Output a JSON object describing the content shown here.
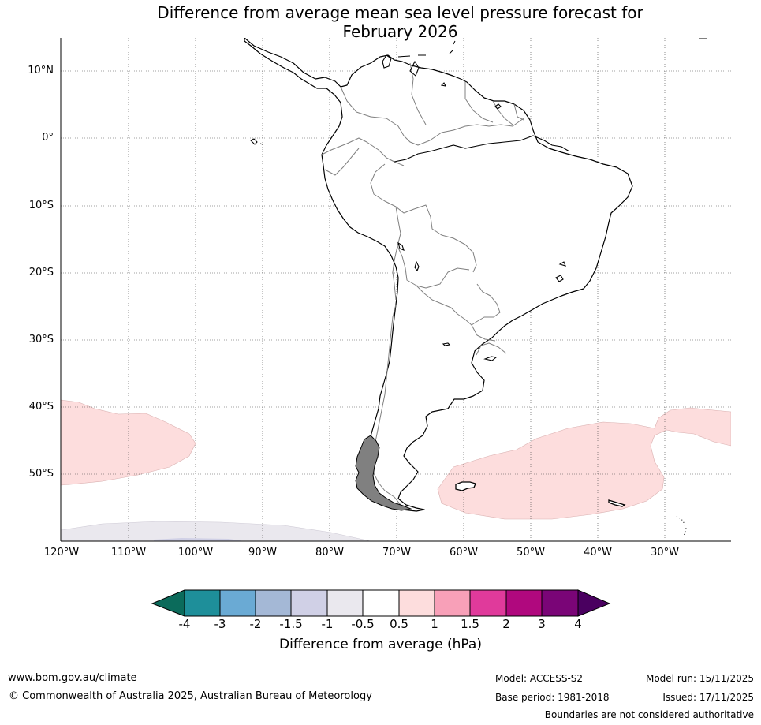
{
  "title_line1": "Difference from average mean sea level pressure forecast for",
  "title_line2": "February 2026",
  "lat_labels": [
    "10°N",
    "0°",
    "10°S",
    "20°S",
    "30°S",
    "40°S",
    "50°S"
  ],
  "lon_labels": [
    "120°W",
    "110°W",
    "100°W",
    "90°W",
    "80°W",
    "70°W",
    "60°W",
    "50°W",
    "40°W",
    "30°W"
  ],
  "colorbar": {
    "label": "Difference from average (hPa)",
    "ticks": [
      "-4",
      "-3",
      "-2",
      "-1.5",
      "-1",
      "-0.5",
      "0.5",
      "1",
      "1.5",
      "2",
      "3",
      "4"
    ],
    "colors": {
      "under": "#0b6b5b",
      "bins": [
        "#1e8f9a",
        "#6aaad4",
        "#a4b8d6",
        "#d0d0e6",
        "#eae8ee",
        "#ffffff",
        "#fddddd",
        "#f8a0b8",
        "#e03a9b",
        "#b0087e",
        "#7a0577"
      ],
      "over": "#4a0060"
    }
  },
  "colors": {
    "positive_anomaly": "#fddddd",
    "negative_anomaly": "#eae8ee",
    "coastline": "#000000",
    "borders": "#808080"
  },
  "footer": {
    "website": "www.bom.gov.au/climate",
    "copyright": "© Commonwealth of Australia 2025, Australian Bureau of Meteorology",
    "model": "Model: ACCESS-S2",
    "base_period": "Base period: 1981-2018",
    "model_run": "Model run: 15/11/2025",
    "issued": "Issued: 17/11/2025",
    "disclaimer": "Boundaries are not considered authoritative"
  }
}
